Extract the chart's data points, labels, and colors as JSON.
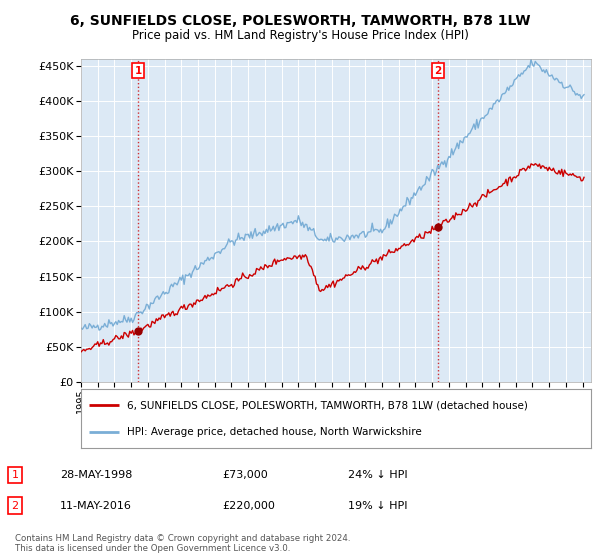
{
  "title": "6, SUNFIELDS CLOSE, POLESWORTH, TAMWORTH, B78 1LW",
  "subtitle": "Price paid vs. HM Land Registry's House Price Index (HPI)",
  "legend_line1": "6, SUNFIELDS CLOSE, POLESWORTH, TAMWORTH, B78 1LW (detached house)",
  "legend_line2": "HPI: Average price, detached house, North Warwickshire",
  "footnote": "Contains HM Land Registry data © Crown copyright and database right 2024.\nThis data is licensed under the Open Government Licence v3.0.",
  "purchase1_date": "28-MAY-1998",
  "purchase1_price": 73000,
  "purchase1_pct": "24% ↓ HPI",
  "purchase2_date": "11-MAY-2016",
  "purchase2_price": 220000,
  "purchase2_pct": "19% ↓ HPI",
  "hpi_color": "#7aaed6",
  "price_color": "#cc0000",
  "marker_color_1": "#990000",
  "marker_color_2": "#990000",
  "vline_color": "#cc0000",
  "ylim_min": 0,
  "ylim_max": 460000,
  "yticks": [
    0,
    50000,
    100000,
    150000,
    200000,
    250000,
    300000,
    350000,
    400000,
    450000
  ],
  "background_color": "#ffffff",
  "plot_bg_color": "#dce9f5"
}
